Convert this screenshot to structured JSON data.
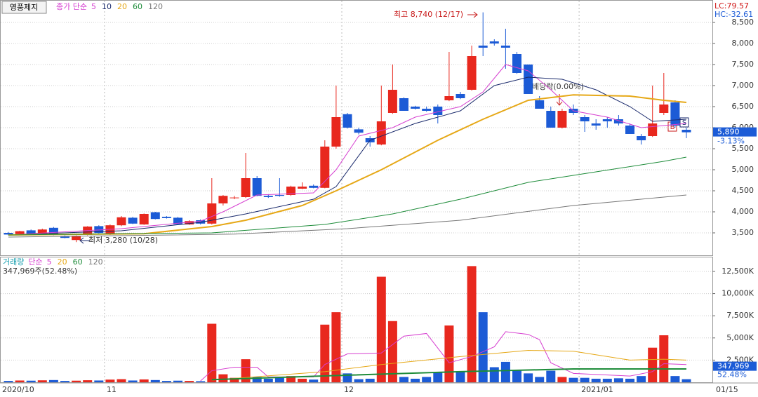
{
  "header": {
    "symbol": "영풍제지",
    "lc": "LC:79.57",
    "hc": "HC:-32.61"
  },
  "x_axis": {
    "ticks": [
      {
        "value": 0,
        "label": "2020/10"
      },
      {
        "value": 9,
        "label": "11"
      },
      {
        "value": 30,
        "label": "12"
      },
      {
        "value": 51,
        "label": "2021/01"
      }
    ],
    "current": "01/15"
  },
  "chart_data": [
    {
      "type": "candlestick",
      "legend_label": "종가 단순",
      "up_color": "#e8281e",
      "down_color": "#1c5bd6",
      "ylim": [
        3000,
        9000
      ],
      "yticks": [
        {
          "value": 3500,
          "label": "3,500"
        },
        {
          "value": 4000,
          "label": "4,000"
        },
        {
          "value": 4500,
          "label": "4,500"
        },
        {
          "value": 5000,
          "label": "5,000"
        },
        {
          "value": 5500,
          "label": "5,500"
        },
        {
          "value": 6000,
          "label": "6,000"
        },
        {
          "value": 6500,
          "label": "6,500"
        },
        {
          "value": 7000,
          "label": "7,000"
        },
        {
          "value": 7500,
          "label": "7,500"
        },
        {
          "value": 8000,
          "label": "8,000"
        },
        {
          "value": 8500,
          "label": "8,500"
        }
      ],
      "grid": true,
      "ohlc": [
        [
          3500,
          3520,
          3440,
          3460
        ],
        [
          3470,
          3550,
          3460,
          3540
        ],
        [
          3560,
          3580,
          3460,
          3470
        ],
        [
          3470,
          3600,
          3460,
          3580
        ],
        [
          3620,
          3640,
          3440,
          3450
        ],
        [
          3420,
          3440,
          3370,
          3380
        ],
        [
          3330,
          3440,
          3280,
          3430
        ],
        [
          3450,
          3660,
          3440,
          3650
        ],
        [
          3660,
          3680,
          3490,
          3500
        ],
        [
          3460,
          3700,
          3450,
          3680
        ],
        [
          3680,
          3900,
          3660,
          3870
        ],
        [
          3860,
          3880,
          3710,
          3720
        ],
        [
          3700,
          3960,
          3690,
          3950
        ],
        [
          3990,
          4000,
          3820,
          3830
        ],
        [
          3880,
          3900,
          3840,
          3850
        ],
        [
          3860,
          3880,
          3690,
          3700
        ],
        [
          3700,
          3800,
          3690,
          3780
        ],
        [
          3800,
          3820,
          3700,
          3720
        ],
        [
          3720,
          4800,
          3700,
          4200
        ],
        [
          4200,
          4400,
          4150,
          4380
        ],
        [
          4330,
          4380,
          4300,
          4340
        ],
        [
          4350,
          5400,
          4330,
          4800
        ],
        [
          4800,
          4850,
          4370,
          4380
        ],
        [
          4380,
          4420,
          4330,
          4350
        ],
        [
          4400,
          4800,
          4360,
          4380
        ],
        [
          4400,
          4620,
          4380,
          4600
        ],
        [
          4550,
          4700,
          4540,
          4600
        ],
        [
          4620,
          4650,
          4560,
          4570
        ],
        [
          4570,
          5700,
          4560,
          5550
        ],
        [
          5550,
          7000,
          5500,
          6250
        ],
        [
          6320,
          6350,
          5980,
          6000
        ],
        [
          5960,
          6000,
          5840,
          5880
        ],
        [
          5750,
          5800,
          5550,
          5650
        ],
        [
          5600,
          7000,
          5580,
          6150
        ],
        [
          6350,
          7500,
          6330,
          6900
        ],
        [
          6700,
          6720,
          6400,
          6400
        ],
        [
          6500,
          6520,
          6430,
          6450
        ],
        [
          6450,
          6500,
          6380,
          6400
        ],
        [
          6500,
          6550,
          6100,
          6300
        ],
        [
          6650,
          7800,
          6630,
          6750
        ],
        [
          6800,
          6850,
          6680,
          6700
        ],
        [
          6900,
          7950,
          6880,
          7700
        ],
        [
          7950,
          8740,
          7700,
          7900
        ],
        [
          8050,
          8100,
          7950,
          8000
        ],
        [
          7950,
          8350,
          7400,
          7900
        ],
        [
          7750,
          7800,
          7280,
          7300
        ],
        [
          7500,
          7500,
          6800,
          6800
        ],
        [
          6650,
          6750,
          6450,
          6450
        ],
        [
          6400,
          6500,
          6000,
          6000
        ],
        [
          6000,
          6450,
          5980,
          6400
        ],
        [
          6450,
          6550,
          6300,
          6350
        ],
        [
          6250,
          6300,
          5900,
          6150
        ],
        [
          6100,
          6200,
          5950,
          6050
        ],
        [
          6200,
          6250,
          6000,
          6150
        ],
        [
          6200,
          6300,
          6050,
          6100
        ],
        [
          6050,
          6100,
          5850,
          5850
        ],
        [
          5800,
          5850,
          5600,
          5700
        ],
        [
          5800,
          7000,
          5780,
          6100
        ],
        [
          6350,
          7300,
          6300,
          6550
        ],
        [
          6600,
          6650,
          6000,
          6050
        ],
        [
          5950,
          6000,
          5750,
          5890
        ]
      ],
      "series": [
        {
          "name": "5",
          "color": "#d63fd0",
          "x": [
            0,
            10,
            17,
            19,
            22,
            27,
            29,
            31,
            34,
            36,
            40,
            42,
            44,
            46,
            48,
            50,
            53,
            56,
            58,
            60
          ],
          "values": [
            3450,
            3600,
            3780,
            4000,
            4400,
            4450,
            5000,
            5800,
            6000,
            6250,
            6500,
            6850,
            7500,
            7350,
            6900,
            6400,
            6250,
            6000,
            6050,
            6100
          ]
        },
        {
          "name": "10",
          "color": "#1a2a6c",
          "x": [
            0,
            10,
            17,
            21,
            27,
            29,
            32,
            36,
            40,
            43,
            46,
            49,
            52,
            55,
            57,
            60
          ],
          "values": [
            3450,
            3550,
            3750,
            3950,
            4300,
            4600,
            5700,
            6100,
            6400,
            7000,
            7200,
            7150,
            6900,
            6500,
            6150,
            6200
          ]
        },
        {
          "name": "20",
          "color": "#e6a817",
          "x": [
            0,
            12,
            18,
            21,
            26,
            29,
            33,
            38,
            42,
            46,
            50,
            55,
            58,
            60
          ],
          "values": [
            3450,
            3480,
            3650,
            3800,
            4150,
            4500,
            5000,
            5700,
            6200,
            6650,
            6780,
            6750,
            6650,
            6600
          ]
        },
        {
          "name": "60",
          "color": "#1e8c3a",
          "x": [
            0,
            18,
            28,
            34,
            40,
            46,
            52,
            58,
            60
          ],
          "values": [
            3450,
            3500,
            3700,
            3950,
            4300,
            4700,
            4950,
            5200,
            5300
          ]
        },
        {
          "name": "120",
          "color": "#777777",
          "x": [
            0,
            20,
            30,
            40,
            50,
            60
          ],
          "values": [
            3400,
            3470,
            3600,
            3800,
            4150,
            4400
          ]
        }
      ],
      "annotations": {
        "high": "최고 8,740 (12/17)",
        "low": "최저 3,280 (10/28)",
        "ex_dividend": "배당락(0.00%)"
      },
      "signals": [
        "B",
        "S"
      ],
      "last": {
        "label": "5,890",
        "change": "-3.13%"
      }
    },
    {
      "type": "bar",
      "legend_title": "거래량",
      "legend_label": "단순",
      "summary": "347,969주(52.48%)",
      "ylim": [
        0,
        14000
      ],
      "yticks": [
        {
          "value": 2500,
          "label": "2,500K"
        },
        {
          "value": 5000,
          "label": "5,000K"
        },
        {
          "value": 7500,
          "label": "7,500K"
        },
        {
          "value": 10000,
          "label": "10,000K"
        },
        {
          "value": 12500,
          "label": "12,500K"
        }
      ],
      "values": [
        150,
        200,
        180,
        220,
        250,
        150,
        180,
        230,
        200,
        300,
        350,
        200,
        320,
        250,
        150,
        180,
        150,
        120,
        6600,
        900,
        500,
        2600,
        600,
        400,
        500,
        700,
        400,
        300,
        6500,
        7900,
        1000,
        350,
        400,
        11900,
        6900,
        600,
        400,
        600,
        1100,
        6400,
        1200,
        13100,
        7900,
        1700,
        2300,
        1300,
        1000,
        600,
        1300,
        600,
        500,
        500,
        400,
        400,
        450,
        400,
        700,
        3900,
        5300,
        700,
        347.969
      ],
      "series": [
        {
          "name": "5",
          "color": "#d63fd0",
          "x": [
            17,
            18,
            20,
            22,
            23,
            27,
            28,
            30,
            33,
            35,
            37,
            39,
            41,
            43,
            44,
            46,
            47,
            48,
            50,
            55,
            57,
            58,
            60
          ],
          "values": [
            150,
            1300,
            1700,
            1700,
            600,
            600,
            2000,
            3200,
            3300,
            5200,
            5500,
            2200,
            2900,
            4000,
            5700,
            5400,
            4800,
            2200,
            1000,
            700,
            1200,
            2100,
            2000
          ]
        },
        {
          "name": "20",
          "color": "#e6a817",
          "x": [
            18,
            28,
            33,
            40,
            46,
            50,
            55,
            58,
            60
          ],
          "values": [
            250,
            1200,
            2000,
            2900,
            3600,
            3500,
            2500,
            2600,
            2500
          ]
        },
        {
          "name": "60",
          "color": "#1e8c3a",
          "x": [
            18,
            30,
            40,
            50,
            60
          ],
          "values": [
            300,
            800,
            1200,
            1500,
            1500
          ]
        },
        {
          "name": "120",
          "color": "#777777",
          "x": [],
          "values": []
        }
      ],
      "last": {
        "label": "347,969",
        "ratio": "52.48%"
      }
    }
  ]
}
